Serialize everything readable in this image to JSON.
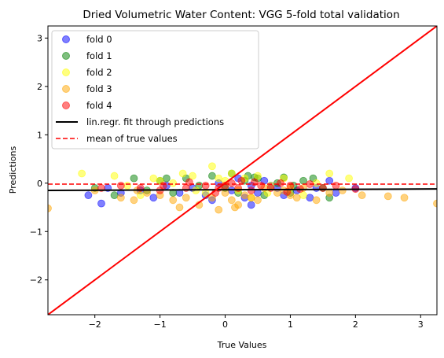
{
  "chart_data": {
    "type": "scatter",
    "title": "Dried Volumetric Water Content: VGG 5-fold total validation",
    "xlabel": "True Values",
    "ylabel": "Predictions",
    "xlim": [
      -2.72,
      3.25
    ],
    "ylim": [
      -2.72,
      3.25
    ],
    "xticks": [
      -2,
      -1,
      0,
      1,
      2,
      3
    ],
    "yticks": [
      -2,
      -1,
      0,
      1,
      2,
      3
    ],
    "tick_labels": [
      "−2",
      "−1",
      "0",
      "1",
      "2",
      "3"
    ],
    "legend_position": "upper-left",
    "series": [
      {
        "name": "fold 0",
        "color": "#0000ff",
        "points": [
          [
            -2.1,
            -0.25
          ],
          [
            -1.8,
            -0.1
          ],
          [
            -1.9,
            -0.42
          ],
          [
            -1.6,
            -0.2
          ],
          [
            -1.3,
            -0.15
          ],
          [
            -1.1,
            -0.3
          ],
          [
            -0.9,
            -0.05
          ],
          [
            -0.7,
            -0.2
          ],
          [
            -0.5,
            -0.1
          ],
          [
            -0.3,
            -0.25
          ],
          [
            -0.1,
            0.0
          ],
          [
            0.1,
            -0.15
          ],
          [
            0.2,
            0.1
          ],
          [
            0.3,
            -0.3
          ],
          [
            0.4,
            -0.05
          ],
          [
            0.5,
            -0.2
          ],
          [
            0.6,
            0.05
          ],
          [
            0.8,
            -0.1
          ],
          [
            0.9,
            -0.25
          ],
          [
            1.1,
            -0.15
          ],
          [
            1.3,
            -0.3
          ],
          [
            1.4,
            -0.1
          ],
          [
            1.6,
            0.05
          ],
          [
            1.7,
            -0.2
          ],
          [
            2.0,
            -0.1
          ],
          [
            -0.2,
            -0.35
          ],
          [
            0.4,
            -0.45
          ],
          [
            0.7,
            -0.05
          ]
        ]
      },
      {
        "name": "fold 1",
        "color": "#008000",
        "points": [
          [
            -2.0,
            -0.1
          ],
          [
            -1.7,
            -0.25
          ],
          [
            -1.4,
            0.1
          ],
          [
            -1.2,
            -0.15
          ],
          [
            -1.0,
            0.05
          ],
          [
            -0.8,
            -0.2
          ],
          [
            -0.6,
            0.1
          ],
          [
            -0.4,
            -0.05
          ],
          [
            -0.2,
            0.15
          ],
          [
            0.0,
            -0.1
          ],
          [
            0.1,
            0.2
          ],
          [
            0.3,
            0.05
          ],
          [
            0.35,
            0.15
          ],
          [
            0.5,
            0.1
          ],
          [
            0.6,
            -0.25
          ],
          [
            0.8,
            0.0
          ],
          [
            0.9,
            0.12
          ],
          [
            1.0,
            -0.2
          ],
          [
            1.2,
            0.05
          ],
          [
            1.35,
            0.1
          ],
          [
            1.5,
            -0.1
          ],
          [
            1.6,
            -0.3
          ],
          [
            -0.9,
            0.1
          ],
          [
            0.2,
            -0.2
          ],
          [
            0.45,
            0.12
          ],
          [
            1.05,
            -0.05
          ]
        ]
      },
      {
        "name": "fold 2",
        "color": "#ffff00",
        "points": [
          [
            -2.2,
            0.2
          ],
          [
            -1.7,
            0.15
          ],
          [
            -1.5,
            -0.05
          ],
          [
            -1.3,
            -0.25
          ],
          [
            -1.1,
            0.1
          ],
          [
            -1.0,
            0.05
          ],
          [
            -0.8,
            0.0
          ],
          [
            -0.65,
            0.2
          ],
          [
            -0.5,
            0.15
          ],
          [
            -0.3,
            -0.2
          ],
          [
            -0.2,
            0.35
          ],
          [
            -0.1,
            0.1
          ],
          [
            0.0,
            0.05
          ],
          [
            0.1,
            0.2
          ],
          [
            0.2,
            -0.15
          ],
          [
            0.3,
            0.1
          ],
          [
            0.4,
            -0.3
          ],
          [
            0.5,
            0.15
          ],
          [
            0.7,
            -0.05
          ],
          [
            0.9,
            0.1
          ],
          [
            1.0,
            -0.1
          ],
          [
            1.2,
            -0.25
          ],
          [
            1.4,
            0.0
          ],
          [
            1.6,
            0.2
          ],
          [
            1.9,
            0.1
          ],
          [
            -0.45,
            -0.15
          ],
          [
            0.65,
            -0.2
          ]
        ]
      },
      {
        "name": "fold 3",
        "color": "#ffa500",
        "points": [
          [
            -2.72,
            -0.52
          ],
          [
            -2.0,
            -0.15
          ],
          [
            -1.6,
            -0.3
          ],
          [
            -1.4,
            -0.35
          ],
          [
            -1.2,
            -0.2
          ],
          [
            -1.0,
            -0.25
          ],
          [
            -0.8,
            -0.35
          ],
          [
            -0.6,
            -0.3
          ],
          [
            -0.4,
            -0.45
          ],
          [
            -0.2,
            -0.3
          ],
          [
            -0.1,
            -0.55
          ],
          [
            0.0,
            -0.2
          ],
          [
            0.1,
            -0.35
          ],
          [
            0.2,
            -0.45
          ],
          [
            0.3,
            -0.25
          ],
          [
            0.4,
            -0.3
          ],
          [
            0.5,
            -0.35
          ],
          [
            0.6,
            -0.1
          ],
          [
            0.8,
            -0.2
          ],
          [
            1.0,
            -0.25
          ],
          [
            1.1,
            -0.3
          ],
          [
            1.2,
            -0.1
          ],
          [
            1.4,
            -0.35
          ],
          [
            1.6,
            -0.2
          ],
          [
            1.8,
            -0.15
          ],
          [
            2.1,
            -0.25
          ],
          [
            2.5,
            -0.27
          ],
          [
            2.75,
            -0.3
          ],
          [
            3.25,
            -0.42
          ],
          [
            -0.7,
            -0.5
          ],
          [
            0.15,
            -0.5
          ],
          [
            0.9,
            -0.15
          ],
          [
            -1.35,
            -0.15
          ]
        ]
      },
      {
        "name": "fold 4",
        "color": "#ff0000",
        "points": [
          [
            -1.9,
            -0.1
          ],
          [
            -1.6,
            -0.05
          ],
          [
            -1.3,
            -0.1
          ],
          [
            -1.0,
            -0.15
          ],
          [
            -0.95,
            -0.05
          ],
          [
            -0.6,
            -0.1
          ],
          [
            -0.55,
            0.02
          ],
          [
            -0.3,
            -0.05
          ],
          [
            -0.1,
            -0.1
          ],
          [
            0.0,
            -0.05
          ],
          [
            0.1,
            0.0
          ],
          [
            0.2,
            -0.1
          ],
          [
            0.25,
            0.05
          ],
          [
            0.4,
            -0.15
          ],
          [
            0.55,
            -0.05
          ],
          [
            0.7,
            -0.1
          ],
          [
            0.85,
            0.0
          ],
          [
            1.0,
            -0.05
          ],
          [
            1.15,
            -0.12
          ],
          [
            1.3,
            -0.02
          ],
          [
            1.5,
            -0.1
          ],
          [
            1.7,
            -0.05
          ],
          [
            2.0,
            -0.12
          ],
          [
            -0.15,
            -0.2
          ],
          [
            0.45,
            0.02
          ],
          [
            0.95,
            -0.18
          ]
        ]
      }
    ],
    "lines": [
      {
        "name": "lin.regr. fit through predictions",
        "color": "#000000",
        "style": "solid",
        "x": [
          -2.72,
          3.25
        ],
        "y": [
          -0.15,
          -0.12
        ]
      },
      {
        "name": "mean of true values",
        "color": "#ff0000",
        "style": "dashed",
        "x": [
          -2.72,
          3.25
        ],
        "y": [
          -0.02,
          -0.02
        ]
      },
      {
        "name": "",
        "color": "#ff0000",
        "style": "solid",
        "x": [
          -2.72,
          3.25
        ],
        "y": [
          -2.72,
          3.25
        ]
      }
    ]
  }
}
